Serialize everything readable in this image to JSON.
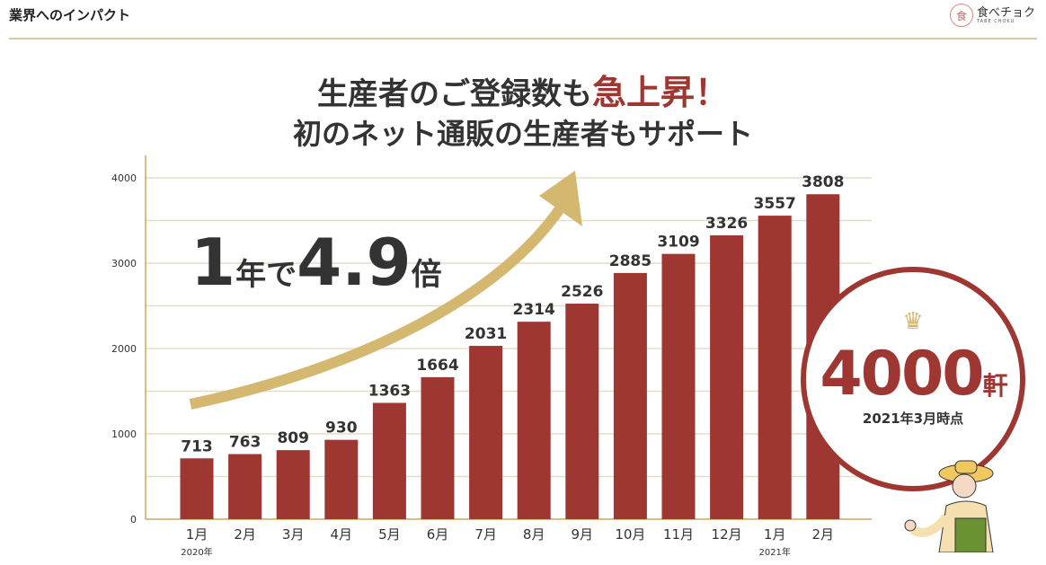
{
  "header": {
    "title": "業界へのインパクト",
    "logo_text": "食べチョク",
    "logo_sub": "TABE CHOKU"
  },
  "headline": {
    "line1_a": "生産者のご登録数も",
    "line1_b": "急上昇！",
    "line2": "初のネット通販の生産者もサポート"
  },
  "callout": {
    "a": "1",
    "b": "年で",
    "c": "4.9",
    "d": "倍"
  },
  "badge": {
    "number": "4000",
    "unit": "軒",
    "date": "2021年3月時点"
  },
  "chart_data": {
    "type": "bar",
    "categories": [
      "1月",
      "2月",
      "3月",
      "4月",
      "5月",
      "6月",
      "7月",
      "8月",
      "9月",
      "10月",
      "11月",
      "12月",
      "1月",
      "2月"
    ],
    "year_labels": [
      {
        "index": 0,
        "label": "2020年"
      },
      {
        "index": 12,
        "label": "2021年"
      }
    ],
    "values": [
      713,
      763,
      809,
      930,
      1363,
      1664,
      2031,
      2314,
      2526,
      2885,
      3109,
      3326,
      3557,
      3808
    ],
    "yticks": [
      0,
      1000,
      2000,
      3000,
      4000
    ],
    "ylim": [
      0,
      4000
    ],
    "grid": true,
    "bar_color": "#9e3631",
    "grid_color": "#e5dcc6"
  }
}
